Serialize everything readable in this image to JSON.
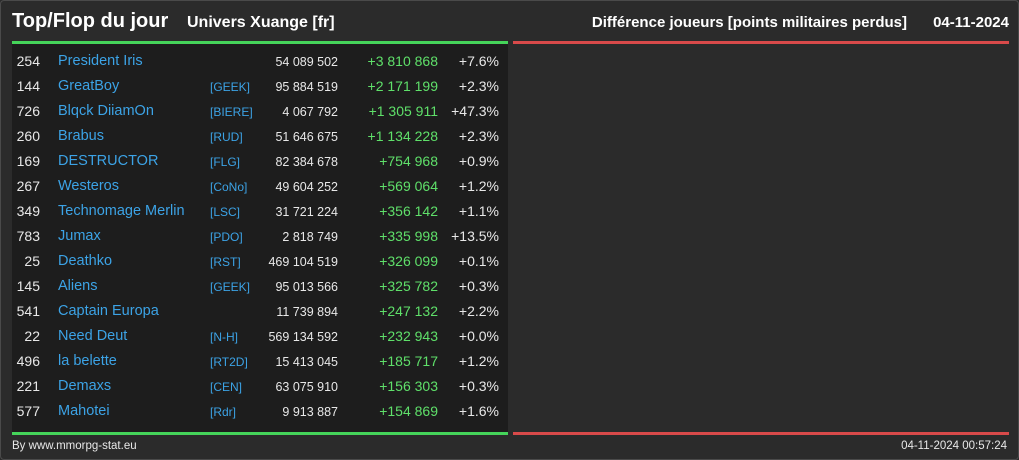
{
  "header": {
    "title": "Top/Flop du jour",
    "universe": "Univers Xuange [fr]",
    "metric": "Différence joueurs [points militaires perdus]",
    "date": "04-11-2024"
  },
  "colors": {
    "background": "#2b2b2b",
    "panel": "#1d1d1d",
    "top_bar": "#45d45a",
    "flop_bar": "#d84a4a",
    "link": "#3ca3e6",
    "positive": "#5fe06a"
  },
  "top": [
    {
      "rank": "254",
      "name": "President Iris",
      "ally": "",
      "points": "54 089 502",
      "diff": "+3 810 868",
      "pct": "+7.6%"
    },
    {
      "rank": "144",
      "name": "GreatBoy",
      "ally": "[GEEK]",
      "points": "95 884 519",
      "diff": "+2 171 199",
      "pct": "+2.3%"
    },
    {
      "rank": "726",
      "name": "Blqck DiiamOn",
      "ally": "[BIERE]",
      "points": "4 067 792",
      "diff": "+1 305 911",
      "pct": "+47.3%"
    },
    {
      "rank": "260",
      "name": "Brabus",
      "ally": "[RUD]",
      "points": "51 646 675",
      "diff": "+1 134 228",
      "pct": "+2.3%"
    },
    {
      "rank": "169",
      "name": "DESTRUCTOR",
      "ally": "[FLG]",
      "points": "82 384 678",
      "diff": "+754 968",
      "pct": "+0.9%"
    },
    {
      "rank": "267",
      "name": "Westeros",
      "ally": "[CoNo]",
      "points": "49 604 252",
      "diff": "+569 064",
      "pct": "+1.2%"
    },
    {
      "rank": "349",
      "name": "Technomage Merlin",
      "ally": "[LSC]",
      "points": "31 721 224",
      "diff": "+356 142",
      "pct": "+1.1%"
    },
    {
      "rank": "783",
      "name": "Jumax",
      "ally": "[PDO]",
      "points": "2 818 749",
      "diff": "+335 998",
      "pct": "+13.5%"
    },
    {
      "rank": "25",
      "name": "Deathko",
      "ally": "[RST]",
      "points": "469 104 519",
      "diff": "+326 099",
      "pct": "+0.1%"
    },
    {
      "rank": "145",
      "name": "Aliens",
      "ally": "[GEEK]",
      "points": "95 013 566",
      "diff": "+325 782",
      "pct": "+0.3%"
    },
    {
      "rank": "541",
      "name": "Captain Europa",
      "ally": "",
      "points": "11 739 894",
      "diff": "+247 132",
      "pct": "+2.2%"
    },
    {
      "rank": "22",
      "name": "Need Deut",
      "ally": "[N-H]",
      "points": "569 134 592",
      "diff": "+232 943",
      "pct": "+0.0%"
    },
    {
      "rank": "496",
      "name": "la belette",
      "ally": "[RT2D]",
      "points": "15 413 045",
      "diff": "+185 717",
      "pct": "+1.2%"
    },
    {
      "rank": "221",
      "name": "Demaxs",
      "ally": "[CEN]",
      "points": "63 075 910",
      "diff": "+156 303",
      "pct": "+0.3%"
    },
    {
      "rank": "577",
      "name": "Mahotei",
      "ally": "[Rdr]",
      "points": "9 913 887",
      "diff": "+154 869",
      "pct": "+1.6%"
    }
  ],
  "footer": {
    "credit": "By www.mmorpg-stat.eu",
    "timestamp": "04-11-2024 00:57:24"
  }
}
